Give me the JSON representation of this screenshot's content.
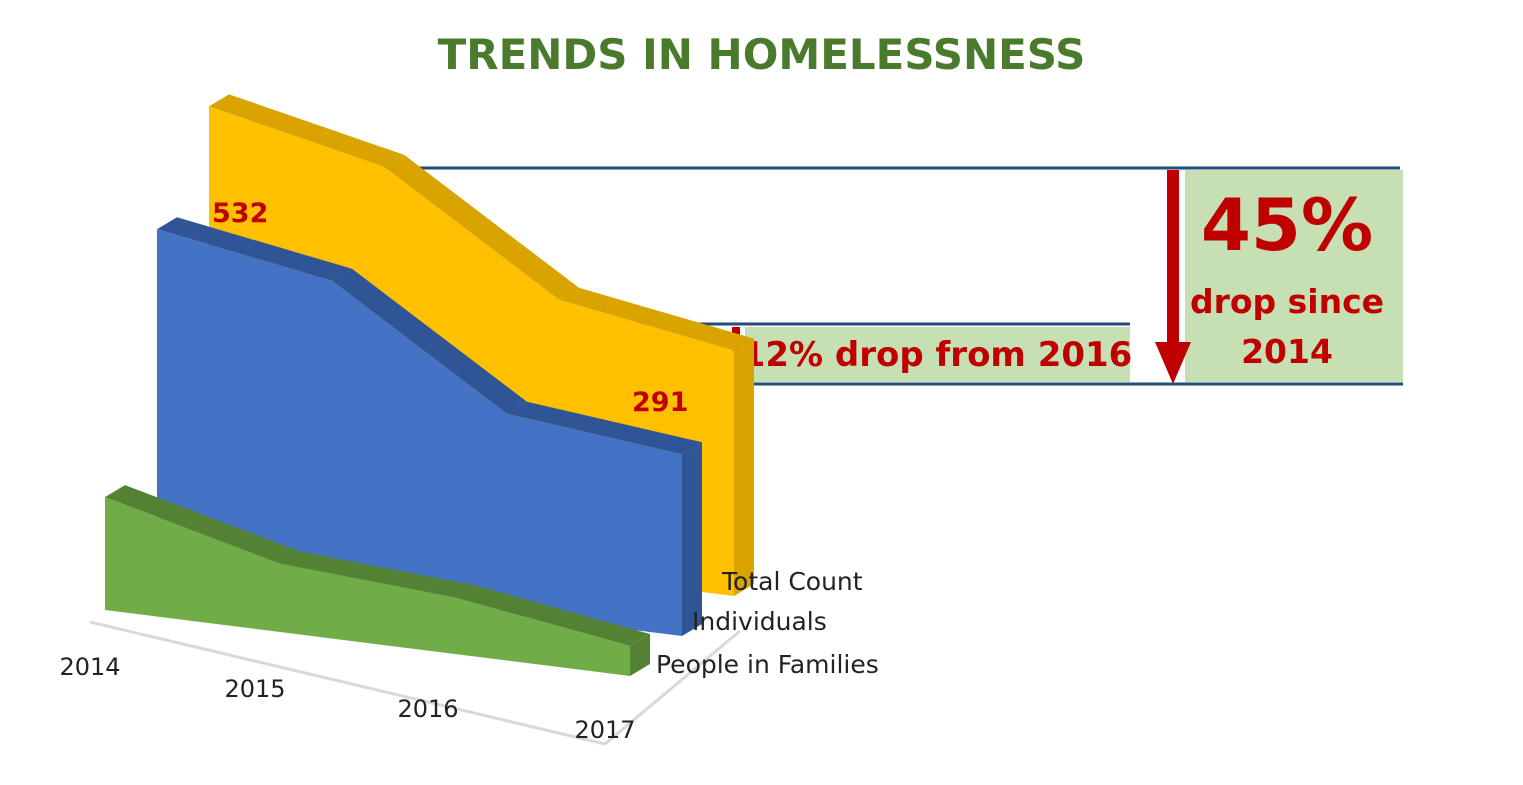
{
  "title": "TRENDS IN HOMELESSNESS",
  "colors": {
    "title": "#4a7a2c",
    "accent_red": "#c00000",
    "callout_bg": "#c6e0b4",
    "rule_line": "#1f4e79"
  },
  "chart_data": {
    "type": "area",
    "style": "3d",
    "categories": [
      "2014",
      "2015",
      "2016",
      "2017"
    ],
    "series": [
      {
        "name": "Total Count",
        "values": [
          532,
          480,
          330,
          291
        ],
        "color": "#ffc000",
        "side_color": "#d9a300"
      },
      {
        "name": "Individuals",
        "values": [
          420,
          380,
          230,
          205
        ],
        "color": "#4472c4",
        "side_color": "#2f5597"
      },
      {
        "name": "People in Families",
        "values": [
          112,
          52,
          36,
          0
        ],
        "color": "#70ad47",
        "side_color": "#548235"
      }
    ],
    "data_labels": [
      {
        "series": "Total Count",
        "category": "2014",
        "text": "532"
      },
      {
        "series": "Total Count",
        "category": "2017",
        "text": "291"
      }
    ],
    "legend": "right",
    "grid": false
  },
  "callouts": {
    "small": {
      "text": "12% drop from 2016"
    },
    "big": {
      "percent": "45%",
      "line1": "drop since",
      "line2": "2014"
    }
  }
}
